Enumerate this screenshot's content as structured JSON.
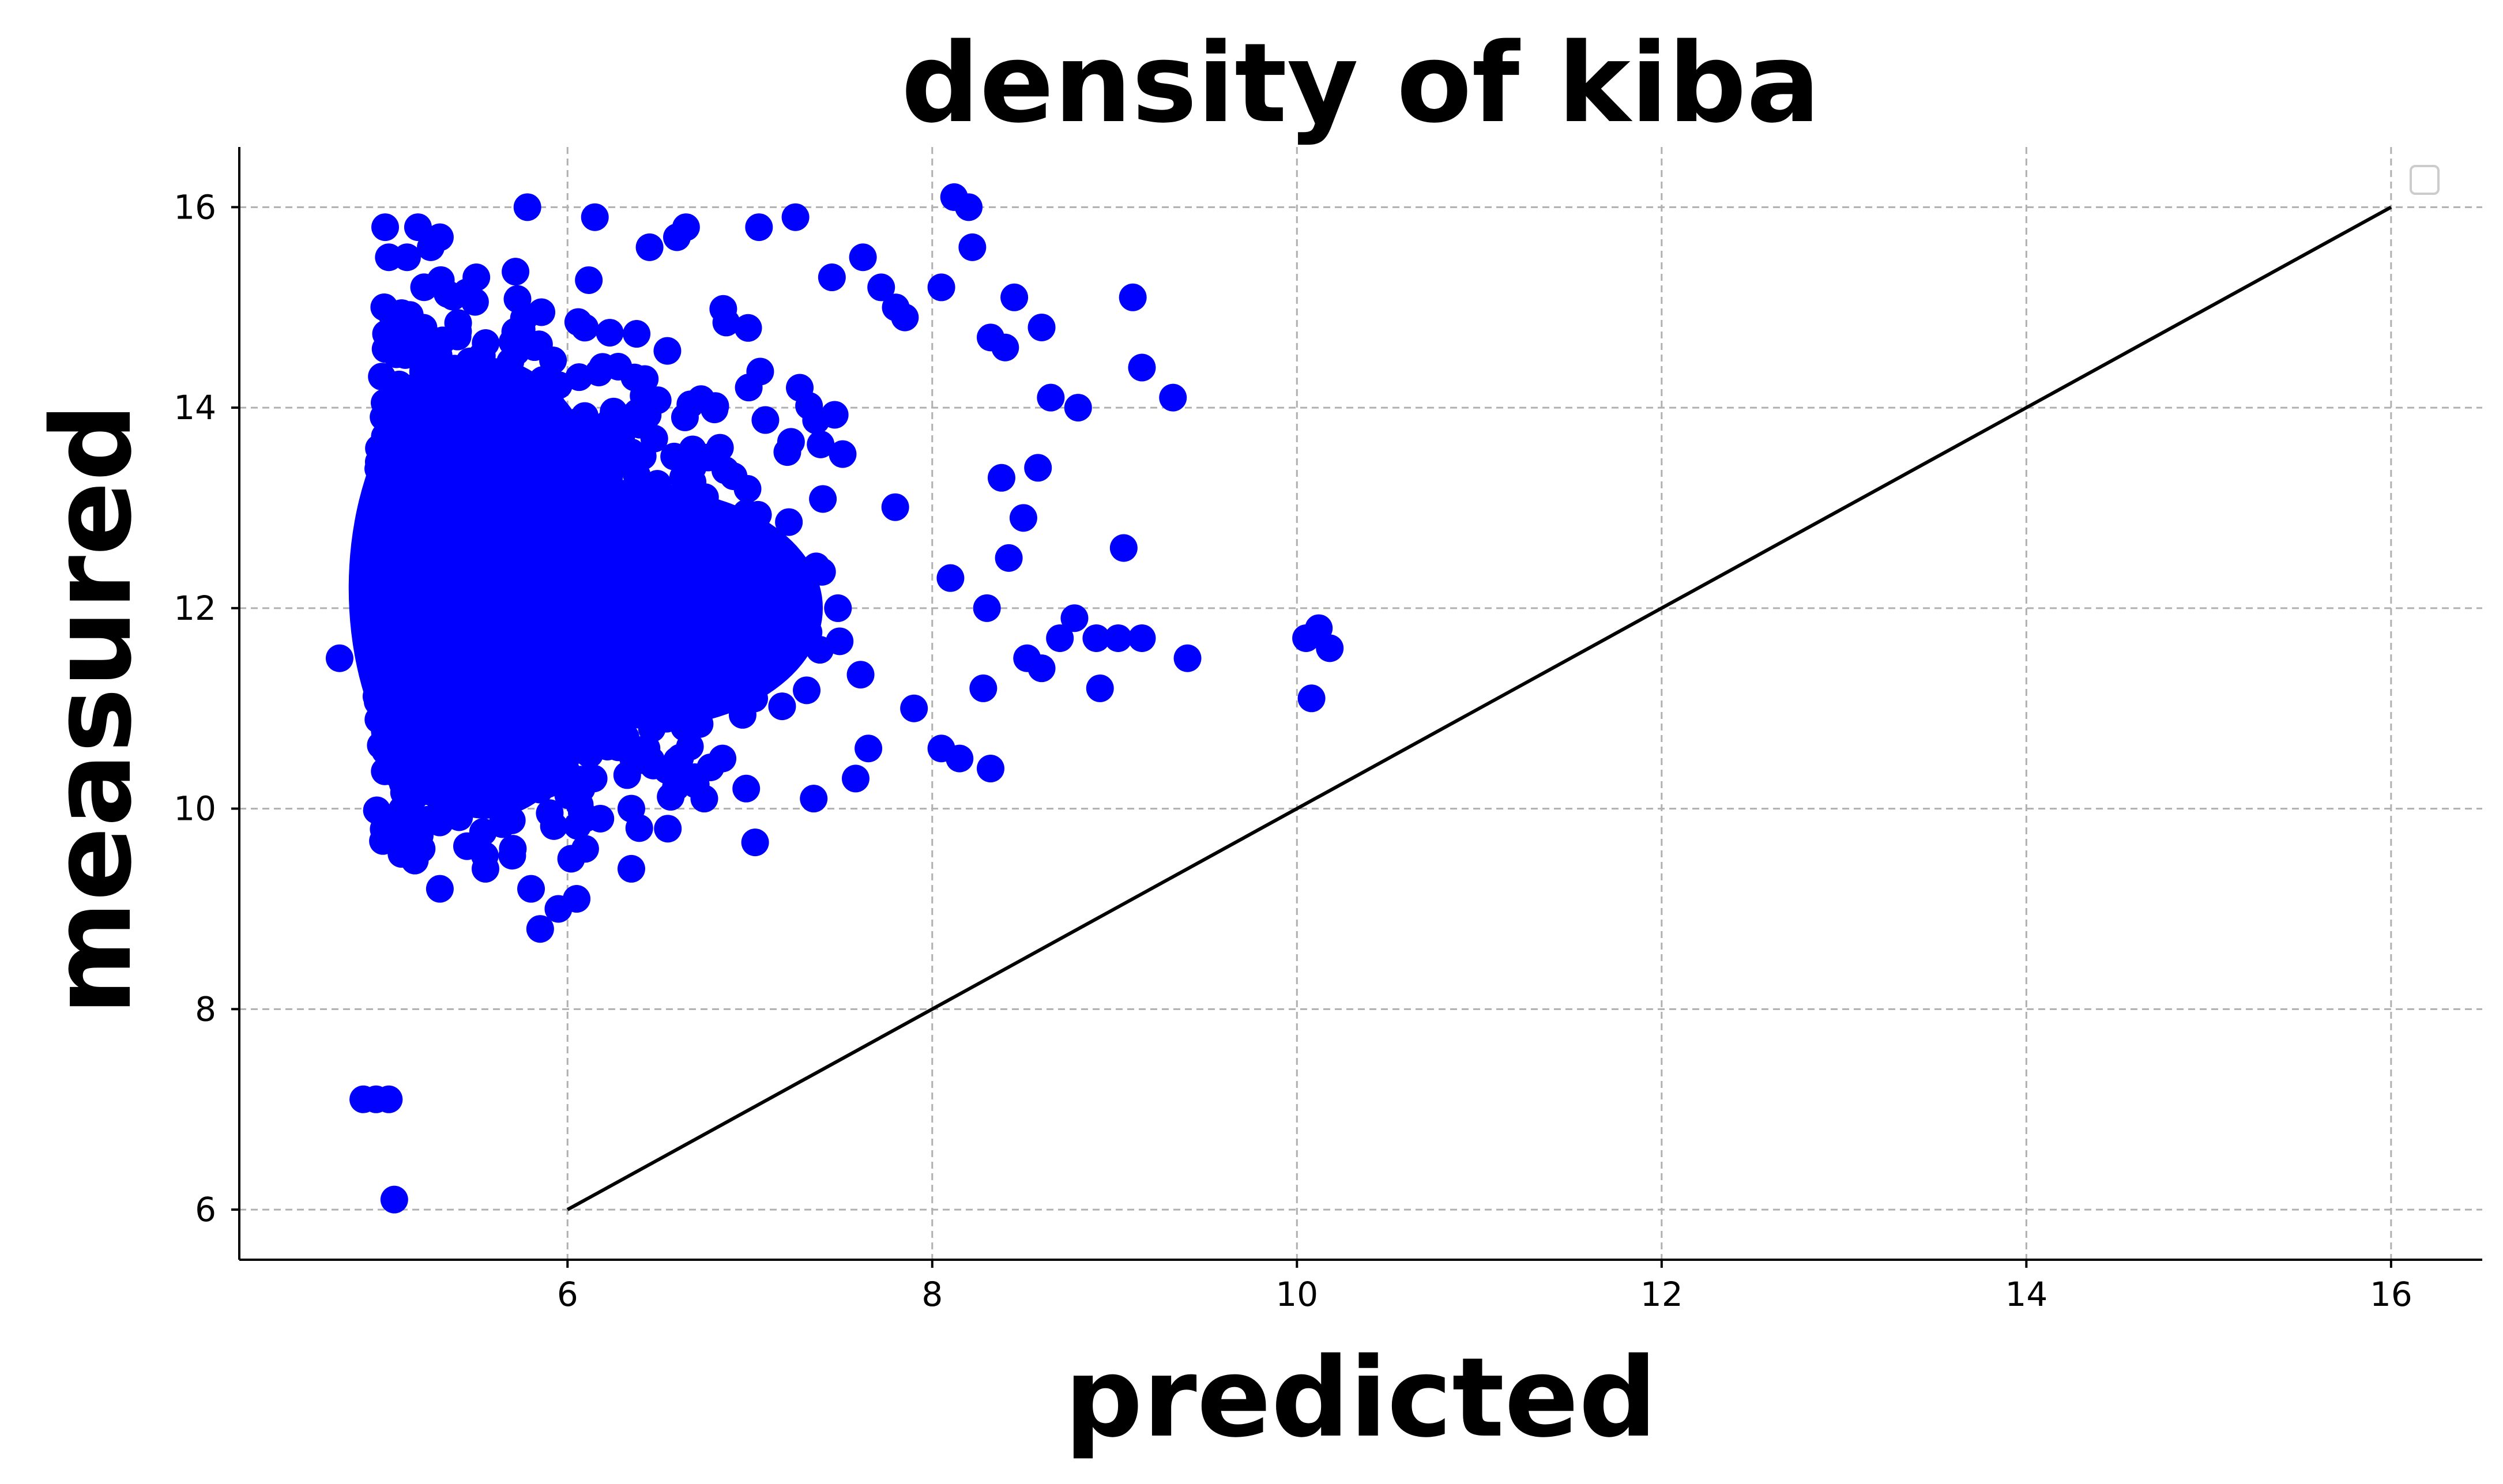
{
  "chart_data": {
    "type": "scatter",
    "title": "density of kiba",
    "xlabel": "predicted",
    "ylabel": "measured",
    "xlim": [
      4.2,
      16.5
    ],
    "ylim": [
      5.5,
      16.6
    ],
    "xticks": [
      6,
      8,
      10,
      12,
      14,
      16
    ],
    "yticks": [
      6,
      8,
      10,
      12,
      14,
      16
    ],
    "grid": true,
    "legend": "top-right (empty)",
    "point_color": "#0000ff",
    "line_color": "#000000",
    "reference_line": {
      "x": [
        6,
        16
      ],
      "y": [
        6,
        16
      ]
    },
    "dense_cloud": {
      "x_range": [
        4.9,
        7.9
      ],
      "y_range": [
        9.4,
        15.4
      ],
      "center": [
        5.6,
        12.2
      ],
      "description_count": 1
    },
    "series": [
      {
        "name": "points",
        "x": [
          4.75,
          4.88,
          4.95,
          5.02,
          5.05,
          5.0,
          5.02,
          5.12,
          5.18,
          5.25,
          5.3,
          5.5,
          5.78,
          6.15,
          6.45,
          6.6,
          6.65,
          7.05,
          7.25,
          7.45,
          7.62,
          7.72,
          7.8,
          7.85,
          8.12,
          8.2,
          8.22,
          8.05,
          8.32,
          8.4,
          8.45,
          8.6,
          8.65,
          8.8,
          8.78,
          8.9,
          9.02,
          9.1,
          9.15,
          9.32,
          9.05,
          9.15,
          9.4,
          10.05,
          10.12,
          10.18,
          10.08,
          8.58,
          8.5,
          8.38,
          8.42,
          8.28,
          8.32,
          7.9,
          7.65,
          7.58,
          7.35,
          6.98,
          6.85,
          6.75,
          6.55,
          6.35,
          6.05,
          5.95,
          5.85,
          5.8,
          5.7,
          5.55,
          5.3,
          5.2,
          5.12,
          8.05,
          8.15,
          8.1,
          8.3,
          8.52,
          8.6,
          8.7,
          8.92,
          6.18,
          6.35,
          6.02
        ],
        "y": [
          11.5,
          7.1,
          7.1,
          7.1,
          6.1,
          15.8,
          15.5,
          15.5,
          15.8,
          15.6,
          15.7,
          15.3,
          16.0,
          15.9,
          15.6,
          15.7,
          15.8,
          15.8,
          15.9,
          15.3,
          15.5,
          15.2,
          15.0,
          14.9,
          16.1,
          16.0,
          15.6,
          15.2,
          14.7,
          14.6,
          15.1,
          14.8,
          14.1,
          14.0,
          11.9,
          11.7,
          11.7,
          15.1,
          14.4,
          14.1,
          12.6,
          11.7,
          11.5,
          11.7,
          11.8,
          11.6,
          11.1,
          13.4,
          12.9,
          13.3,
          12.5,
          11.2,
          10.4,
          11.0,
          10.6,
          10.3,
          10.1,
          10.2,
          10.5,
          10.1,
          9.8,
          9.4,
          9.1,
          9.0,
          8.8,
          9.2,
          9.6,
          9.4,
          9.2,
          9.6,
          9.8,
          10.6,
          10.5,
          12.3,
          12.0,
          11.5,
          11.4,
          11.7,
          11.2,
          9.9,
          10.0,
          9.5
        ]
      }
    ]
  }
}
